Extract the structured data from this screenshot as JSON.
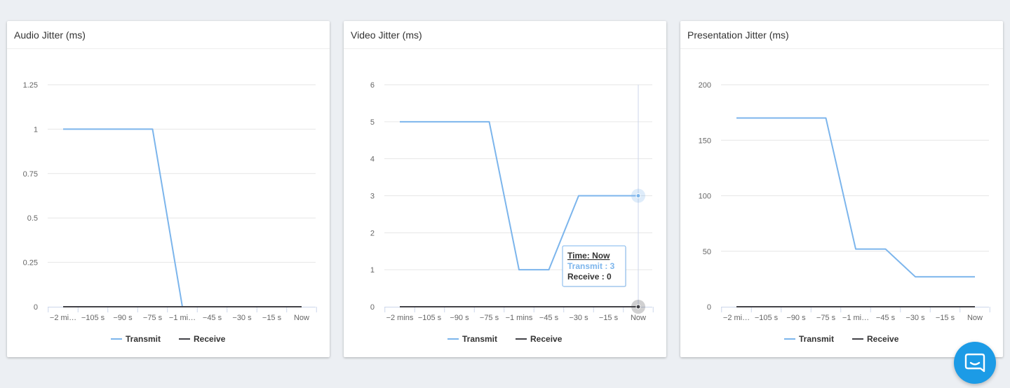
{
  "colors": {
    "transmit": "#7cb5ec",
    "receive": "#434348",
    "grid": "#e6e6e6",
    "chat": "#1c9be6"
  },
  "legend": {
    "transmit": "Transmit",
    "receive": "Receive"
  },
  "chart_data": [
    {
      "type": "line",
      "title": "Audio Jitter (ms)",
      "categories": [
        "−2 mi…",
        "−105 s",
        "−90 s",
        "−75 s",
        "−1 mi…",
        "−45 s",
        "−30 s",
        "−15 s",
        "Now"
      ],
      "yticks": [
        "0",
        "0.25",
        "0.5",
        "0.75",
        "1",
        "1.25"
      ],
      "ylim": [
        0,
        1.25
      ],
      "legend_position": "bottom-center",
      "series": [
        {
          "name": "Transmit",
          "values": [
            1,
            1,
            1,
            1,
            0,
            0,
            0,
            0,
            0
          ]
        },
        {
          "name": "Receive",
          "values": [
            0,
            0,
            0,
            0,
            0,
            0,
            0,
            0,
            0
          ]
        }
      ]
    },
    {
      "type": "line",
      "title": "Video Jitter (ms)",
      "categories": [
        "−2 mins",
        "−105 s",
        "−90 s",
        "−75 s",
        "−1 mins",
        "−45 s",
        "−30 s",
        "−15 s",
        "Now"
      ],
      "yticks": [
        "0",
        "1",
        "2",
        "3",
        "4",
        "5",
        "6"
      ],
      "ylim": [
        0,
        6
      ],
      "legend_position": "bottom-center",
      "series": [
        {
          "name": "Transmit",
          "values": [
            5,
            5,
            5,
            5,
            1,
            1,
            3,
            3,
            3
          ]
        },
        {
          "name": "Receive",
          "values": [
            0,
            0,
            0,
            0,
            0,
            0,
            0,
            0,
            0
          ]
        }
      ],
      "tooltip": {
        "point_index": 8,
        "time": "Time: Now",
        "transmit": "Transmit : 3",
        "receive": "Receive : 0"
      }
    },
    {
      "type": "line",
      "title": "Presentation Jitter (ms)",
      "categories": [
        "−2 mi…",
        "−105 s",
        "−90 s",
        "−75 s",
        "−1 mi…",
        "−45 s",
        "−30 s",
        "−15 s",
        "Now"
      ],
      "yticks": [
        "0",
        "50",
        "100",
        "150",
        "200"
      ],
      "ylim": [
        0,
        200
      ],
      "legend_position": "bottom-center",
      "series": [
        {
          "name": "Transmit",
          "values": [
            170,
            170,
            170,
            170,
            52,
            52,
            27,
            27,
            27
          ]
        },
        {
          "name": "Receive",
          "values": [
            0,
            0,
            0,
            0,
            0,
            0,
            0,
            0,
            0
          ]
        }
      ]
    }
  ],
  "chat": {
    "icon": "chat-bubble-icon"
  }
}
